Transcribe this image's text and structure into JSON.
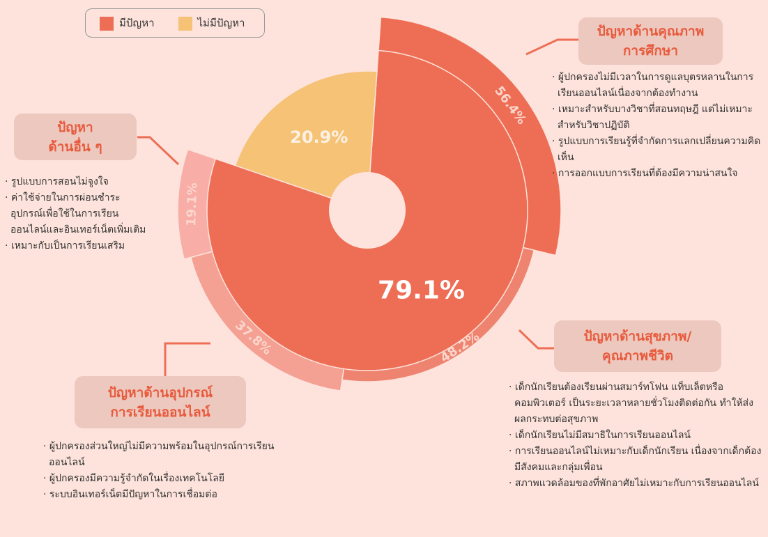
{
  "chart_data": {
    "type": "pie",
    "categories": [
      "มีปัญหา",
      "ไม่มีปัญหา"
    ],
    "values": [
      79.1,
      20.9
    ],
    "value_labels": [
      "79.1%",
      "20.9%"
    ],
    "colors": [
      "#ee6e55",
      "#f5c276"
    ],
    "ring": {
      "categories": [
        [
          "ปัญหาด้านคุณภาพ",
          "การศึกษา"
        ],
        [
          "ปัญหาด้านสุขภาพ/",
          "คุณภาพชีวิต"
        ],
        [
          "ปัญหาด้านอุปกรณ์",
          "การเรียนออนไลน์"
        ],
        [
          "ปัญหา",
          "ด้านอื่น ๆ"
        ]
      ],
      "values": [
        56.4,
        48.2,
        37.8,
        19.1
      ],
      "value_labels": [
        "56.4%",
        "48.2%",
        "37.8%",
        "19.1%"
      ],
      "colors": [
        "#ee6e55",
        "#ee8470",
        "#f4a093",
        "#f8aea6"
      ],
      "details": [
        [
          "ผู้ปกครองไม่มีเวลาในการดูแลบุตรหลานในการเรียนออนไลน์เนื่องจากต้องทำงาน",
          "เหมาะสำหรับบางวิชาที่สอนทฤษฎี แต่ไม่เหมาะสำหรับวิชาปฏิบัติ",
          "รูปแบบการเรียนรู้ที่จำกัดการแลกเปลี่ยนความคิดเห็น",
          "การออกแบบการเรียนที่ต้องมีความน่าสนใจ"
        ],
        [
          "เด็กนักเรียนต้องเรียนผ่านสมาร์ทโฟน แท็บเล็ตหรือคอมพิวเตอร์ เป็นระยะเวลาหลายชั่วโมงติดต่อกัน ทำให้ส่งผลกระทบต่อสุขภาพ",
          "เด็กนักเรียนไม่มีสมาธิในการเรียนออนไลน์",
          "การเรียนออนไลน์ไม่เหมาะกับเด็กนักเรียน เนื่องจากเด็กต้องมีสังคมและกลุ่มเพื่อน",
          "สภาพแวดล้อมของที่พักอาศัยไม่เหมาะกับการเรียนออนไลน์"
        ],
        [
          "ผู้ปกครองส่วนใหญ่ไม่มีความพร้อมในอุปกรณ์การเรียนออนไลน์",
          "ผู้ปกครองมีความรู้จำกัดในเรื่องเทคโนโลยี",
          "ระบบอินเทอร์เน็ตมีปัญหาในการเชื่อมต่อ"
        ],
        [
          "รูปแบบการสอนไม่จูงใจ",
          "ค่าใช้จ่ายในการผ่อนชำระอุปกรณ์เพื่อใช้ในการเรียนออนไลน์และอินเทอร์เน็ตเพิ่มเติม",
          "เหมาะกับเป็นการเรียนเสริม"
        ]
      ]
    }
  }
}
